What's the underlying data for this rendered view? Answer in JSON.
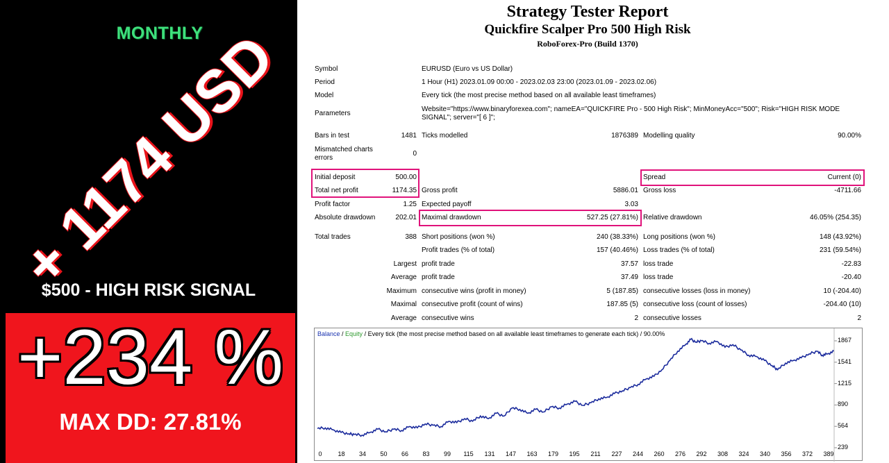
{
  "promo": {
    "monthly": "MONTHLY",
    "gain_usd": "+ 1174 USD",
    "signal": "$500 - HIGH RISK SIGNAL",
    "gain_pct": "+234 %",
    "max_dd": "MAX DD: 27.81%",
    "colors": {
      "bg": "#000000",
      "green": "#3ee07c",
      "red": "#f0151d",
      "accent": "#e8131a"
    }
  },
  "report": {
    "title": "Strategy Tester Report",
    "subtitle": "Quickfire Scalper Pro 500 High Risk",
    "broker": "RoboForex-Pro (Build 1370)",
    "info": {
      "symbol_label": "Symbol",
      "symbol": "EURUSD (Euro vs US Dollar)",
      "period_label": "Period",
      "period": "1 Hour (H1) 2023.01.09 00:00 - 2023.02.03 23:00 (2023.01.09 - 2023.02.06)",
      "model_label": "Model",
      "model": "Every tick (the most precise method based on all available least timeframes)",
      "params_label": "Parameters",
      "params_1": "Website=\"https://www.binaryforexea.com\"; nameEA=\"QUICKFIRE Pro - 500 High Risk\"; MinMoneyAcc=\"500\"; Risk=\"HIGH RISK MODE",
      "params_2": "SIGNAL\"; server=\"[ 6 ]\";"
    },
    "stats": {
      "bars_label": "Bars in test",
      "bars": "1481",
      "ticks_label": "Ticks modelled",
      "ticks": "1876389",
      "quality_label": "Modelling quality",
      "quality": "90.00%",
      "mismatch_label_1": "Mismatched charts",
      "mismatch_label_2": "errors",
      "mismatch": "0",
      "deposit_label": "Initial deposit",
      "deposit": "500.00",
      "spread_label": "Spread",
      "spread": "Current (0)",
      "net_label": "Total net profit",
      "net": "1174.35",
      "gross_profit_label": "Gross profit",
      "gross_profit": "5886.01",
      "gross_loss_label": "Gross loss",
      "gross_loss": "-4711.66",
      "pf_label": "Profit factor",
      "pf": "1.25",
      "payoff_label": "Expected payoff",
      "payoff": "3.03",
      "abs_dd_label": "Absolute drawdown",
      "abs_dd": "202.01",
      "max_dd_label": "Maximal drawdown",
      "max_dd": "527.25 (27.81%)",
      "rel_dd_label": "Relative drawdown",
      "rel_dd": "46.05% (254.35)",
      "trades_label": "Total trades",
      "trades": "388",
      "short_label": "Short positions (won %)",
      "short": "240 (38.33%)",
      "long_label": "Long positions (won %)",
      "long": "148 (43.92%)",
      "ptrades_label": "Profit trades (% of total)",
      "ptrades": "157 (40.46%)",
      "ltrades_label": "Loss trades (% of total)",
      "ltrades": "231 (59.54%)",
      "largest": "Largest",
      "largest_pt_label": "profit trade",
      "largest_pt": "37.57",
      "largest_lt_label": "loss trade",
      "largest_lt": "-22.83",
      "average": "Average",
      "avg_pt_label": "profit trade",
      "avg_pt": "37.49",
      "avg_lt_label": "loss trade",
      "avg_lt": "-20.40",
      "maximum": "Maximum",
      "max_cw_label": "consecutive wins (profit in money)",
      "max_cw": "5 (187.85)",
      "max_cl_label": "consecutive losses (loss in money)",
      "max_cl": "10 (-204.40)",
      "maximal": "Maximal",
      "maxl_cp_label": "consecutive profit (count of wins)",
      "maxl_cp": "187.85 (5)",
      "maxl_cl_label": "consecutive loss (count of losses)",
      "maxl_cl": "-204.40 (10)",
      "avg_cw_label": "consecutive wins",
      "avg_cw": "2",
      "avg_cl_label": "consecutive losses",
      "avg_cl": "2"
    },
    "highlight_color": "#e0127a"
  },
  "chart_data": {
    "type": "line",
    "legend": {
      "balance": "Balance",
      "sep1": " / ",
      "equity": "Equity",
      "rest": " / Every tick (the most precise method based on all available least timeframes to generate each tick) / 90.00%"
    },
    "x_ticks": [
      "0",
      "18",
      "34",
      "50",
      "66",
      "83",
      "99",
      "115",
      "131",
      "147",
      "163",
      "179",
      "195",
      "211",
      "227",
      "244",
      "260",
      "276",
      "292",
      "308",
      "324",
      "340",
      "356",
      "372",
      "389"
    ],
    "y_ticks": [
      "1867",
      "1541",
      "1215",
      "890",
      "564",
      "239"
    ],
    "xlim": [
      0,
      393
    ],
    "ylim": [
      239,
      1900
    ],
    "series": [
      {
        "name": "Balance",
        "color": "#1a2a9c",
        "x": [
          0,
          6,
          12,
          18,
          24,
          28,
          34,
          40,
          46,
          52,
          58,
          64,
          70,
          76,
          82,
          88,
          94,
          100,
          106,
          112,
          118,
          124,
          130,
          136,
          142,
          148,
          154,
          160,
          166,
          172,
          178,
          184,
          190,
          196,
          202,
          208,
          214,
          220,
          226,
          232,
          238,
          244,
          250,
          256,
          262,
          268,
          274,
          280,
          284,
          288,
          292,
          298,
          304,
          310,
          316,
          322,
          328,
          334,
          340,
          346,
          350,
          356,
          362,
          368,
          374,
          380,
          384,
          388,
          393
        ],
        "y": [
          530,
          540,
          510,
          470,
          450,
          440,
          430,
          470,
          520,
          480,
          520,
          500,
          560,
          540,
          600,
          580,
          560,
          640,
          620,
          680,
          640,
          720,
          680,
          760,
          720,
          840,
          820,
          760,
          820,
          780,
          860,
          840,
          900,
          940,
          880,
          920,
          980,
          1000,
          1060,
          1100,
          1150,
          1200,
          1280,
          1320,
          1420,
          1560,
          1700,
          1800,
          1880,
          1840,
          1860,
          1820,
          1850,
          1760,
          1800,
          1720,
          1640,
          1620,
          1560,
          1480,
          1420,
          1520,
          1560,
          1600,
          1660,
          1700,
          1640,
          1660,
          1700
        ]
      }
    ]
  }
}
